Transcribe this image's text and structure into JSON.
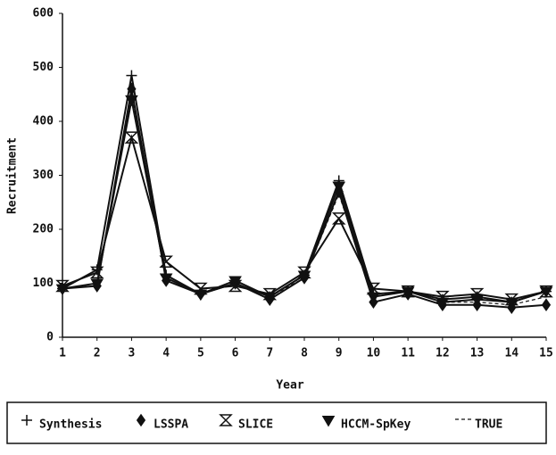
{
  "chart_data": {
    "type": "line",
    "x_label": "Year",
    "y_label": "Recruitment",
    "x": [
      1,
      2,
      3,
      4,
      5,
      6,
      7,
      8,
      9,
      10,
      11,
      12,
      13,
      14,
      15
    ],
    "xlim": [
      1,
      15
    ],
    "xticks": [
      1,
      2,
      3,
      4,
      5,
      6,
      7,
      8,
      9,
      10,
      11,
      12,
      13,
      14,
      15
    ],
    "ylim": [
      0,
      600
    ],
    "yticks": [
      0,
      100,
      200,
      300,
      400,
      500,
      600
    ],
    "legend": "bottom",
    "series": [
      {
        "name": "Synthesis",
        "color": "#111111",
        "marker": "plus",
        "values": [
          90,
          125,
          485,
          115,
          80,
          100,
          75,
          115,
          290,
          80,
          85,
          70,
          75,
          65,
          85
        ]
      },
      {
        "name": "LSSPA",
        "color": "#111111",
        "marker": "diamond",
        "values": [
          90,
          95,
          460,
          105,
          80,
          100,
          70,
          110,
          270,
          65,
          80,
          60,
          60,
          55,
          60
        ]
      },
      {
        "name": "SLICE",
        "color": "#111111",
        "marker": "hourglass",
        "values": [
          95,
          120,
          370,
          140,
          90,
          95,
          80,
          120,
          220,
          90,
          85,
          75,
          80,
          70,
          85
        ]
      },
      {
        "name": "HCCM-SpKey",
        "color": "#111111",
        "marker": "triangle-down",
        "values": [
          90,
          100,
          440,
          110,
          80,
          105,
          75,
          115,
          280,
          75,
          85,
          65,
          70,
          65,
          85
        ]
      },
      {
        "name": "TRUE",
        "color": "#111111",
        "marker": "none",
        "dash": true,
        "values": [
          90,
          100,
          450,
          110,
          80,
          100,
          75,
          110,
          265,
          75,
          85,
          65,
          65,
          60,
          75
        ]
      }
    ]
  }
}
